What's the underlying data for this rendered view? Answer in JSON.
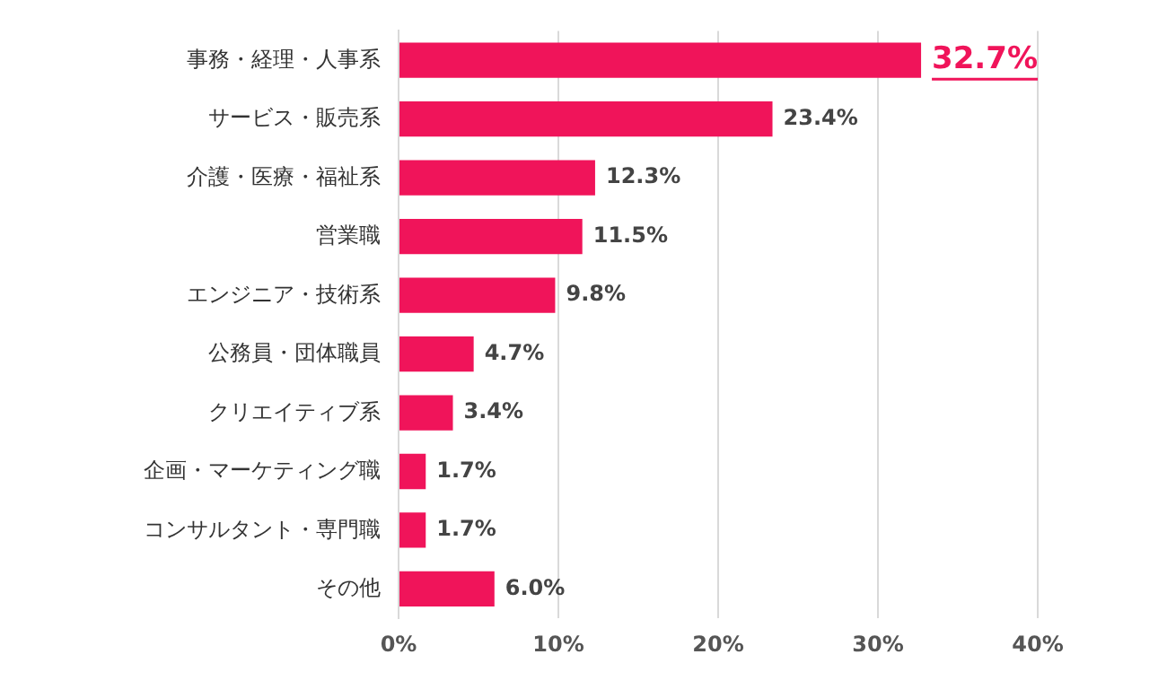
{
  "chart_data": {
    "type": "bar",
    "orientation": "horizontal",
    "categories": [
      "事務・経理・人事系",
      "サービス・販売系",
      "介護・医療・福祉系",
      "営業職",
      "エンジニア・技術系",
      "公務員・団体職員",
      "クリエイティブ系",
      "企画・マーケティング職",
      "コンサルタント・専門職",
      "その他"
    ],
    "values": [
      32.7,
      23.4,
      12.3,
      11.5,
      9.8,
      4.7,
      3.4,
      1.7,
      1.7,
      6.0
    ],
    "value_labels": [
      "32.7%",
      "23.4%",
      "12.3%",
      "11.5%",
      "9.8%",
      "4.7%",
      "3.4%",
      "1.7%",
      "1.7%",
      "6.0%"
    ],
    "color": "#f0145a",
    "xlim": [
      0,
      40
    ],
    "xticks": [
      {
        "value": 0,
        "label": "0%"
      },
      {
        "value": 10,
        "label": "10%"
      },
      {
        "value": 20,
        "label": "20%"
      },
      {
        "value": 30,
        "label": "30%"
      },
      {
        "value": 40,
        "label": "40%"
      }
    ],
    "grid": "x",
    "legend": false
  }
}
